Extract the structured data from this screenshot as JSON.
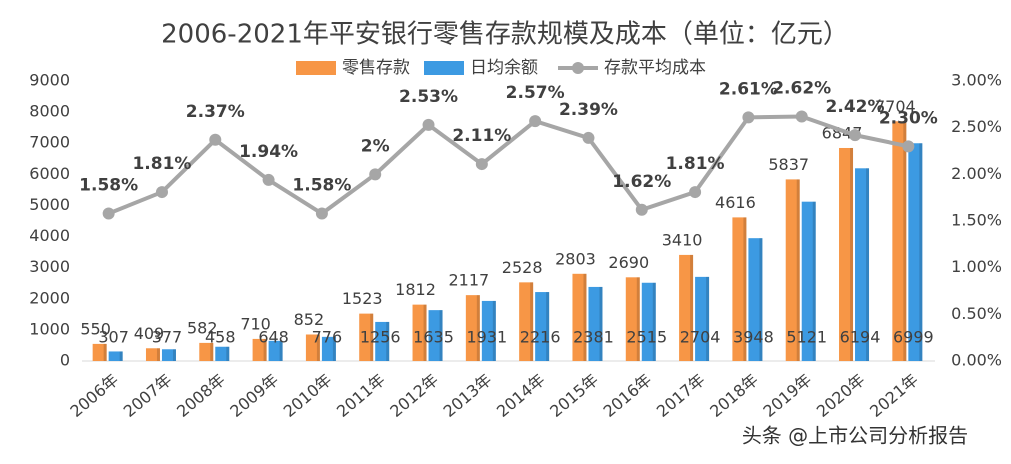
{
  "chart_data": {
    "type": "bar",
    "title": "2006-2021年平安银行零售存款规模及成本（单位：亿元）",
    "watermark": "头条 @上市公司分析报告",
    "categories": [
      "2006年",
      "2007年",
      "2008年",
      "2009年",
      "2010年",
      "2011年",
      "2012年",
      "2013年",
      "2014年",
      "2015年",
      "2016年",
      "2017年",
      "2018年",
      "2019年",
      "2020年",
      "2021年"
    ],
    "series": [
      {
        "name": "零售存款",
        "color": "#f79646",
        "values": [
          550,
          409,
          582,
          710,
          852,
          1523,
          1812,
          2117,
          2528,
          2803,
          2690,
          3410,
          4616,
          5837,
          6847,
          7704
        ]
      },
      {
        "name": "日均余额",
        "color": "#3c9ae2",
        "values": [
          307,
          377,
          458,
          648,
          776,
          1256,
          1635,
          1931,
          2216,
          2381,
          2515,
          2704,
          3948,
          5121,
          6194,
          6999
        ]
      },
      {
        "name": "存款平均成本",
        "type": "line",
        "axis": "y2",
        "color": "#a6a6a6",
        "values": [
          1.58,
          1.81,
          2.37,
          1.94,
          1.58,
          2,
          2.53,
          2.11,
          2.57,
          2.39,
          1.62,
          1.81,
          2.61,
          2.62,
          2.42,
          2.3
        ],
        "value_labels": [
          "1.58%",
          "1.81%",
          "2.37%",
          "1.94%",
          "1.58%",
          "2%",
          "2.53%",
          "2.11%",
          "2.57%",
          "2.39%",
          "1.62%",
          "1.81%",
          "2.61%",
          "2.62%",
          "2.42%",
          "2.30%"
        ]
      }
    ],
    "ylim": [
      0,
      9000
    ],
    "yticks": [
      0,
      1000,
      2000,
      3000,
      4000,
      5000,
      6000,
      7000,
      8000,
      9000
    ],
    "y2lim": [
      0,
      3
    ],
    "y2ticks": [
      {
        "value": 0,
        "label": "0.00%"
      },
      {
        "value": 0.5,
        "label": "0.50%"
      },
      {
        "value": 1,
        "label": "1.00%"
      },
      {
        "value": 1.5,
        "label": "1.50%"
      },
      {
        "value": 2,
        "label": "2.00%"
      },
      {
        "value": 2.5,
        "label": "2.50%"
      },
      {
        "value": 3,
        "label": "3.00%"
      }
    ]
  }
}
